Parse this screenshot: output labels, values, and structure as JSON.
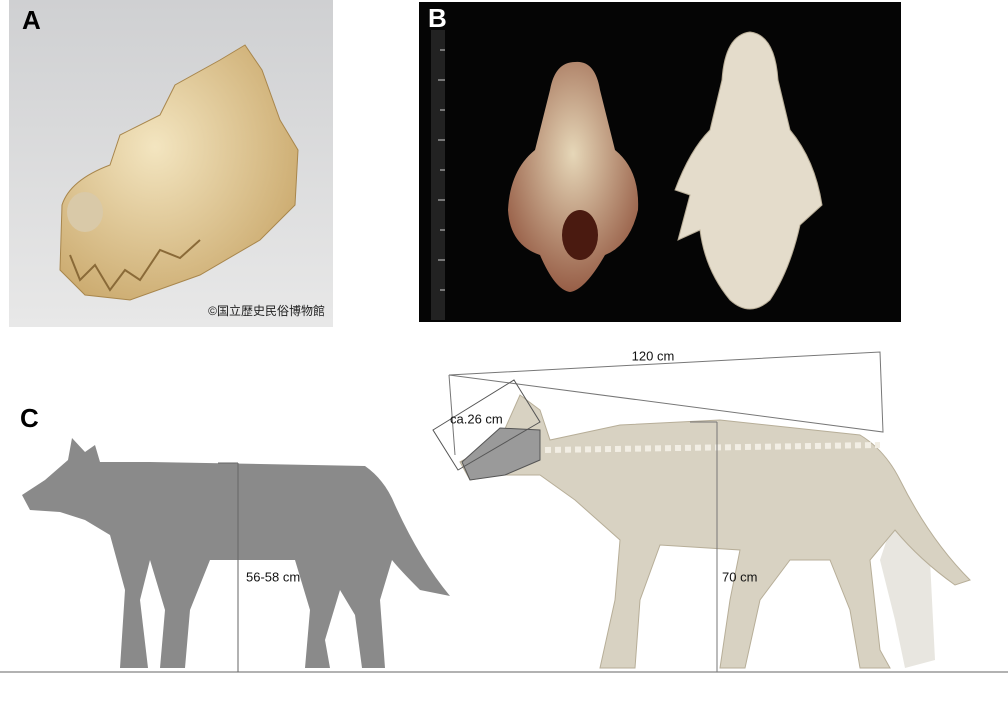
{
  "panels": {
    "a": {
      "label": "A",
      "credit": "©国立歴史民俗博物館"
    },
    "b": {
      "label": "B"
    },
    "c": {
      "label": "C",
      "total_length": "120 cm",
      "skull_length": "ca.26 cm",
      "gray_wolf_height": "56-58 cm",
      "extinct_wolf_height": "70 cm"
    }
  }
}
